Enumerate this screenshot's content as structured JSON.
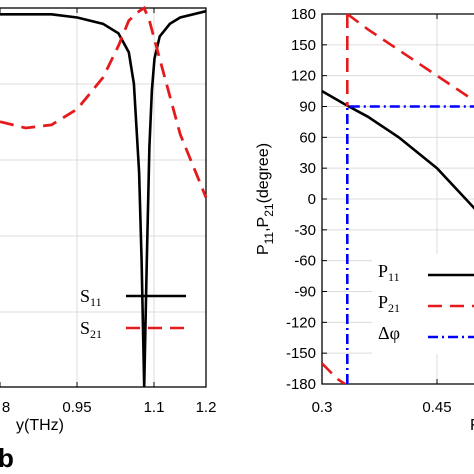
{
  "chart_data": [
    {
      "type": "line",
      "xlabel_visible": "y(THz)",
      "x_ticks": [
        "8",
        "0.95",
        "1.1",
        "1.2"
      ],
      "xlim": [
        0.8,
        1.2
      ],
      "series": [
        {
          "name": "S11",
          "color": "#000000",
          "style": "solid",
          "x": [
            0.8,
            0.85,
            0.9,
            0.95,
            1.0,
            1.03,
            1.05,
            1.06,
            1.07,
            1.075,
            1.08,
            1.085,
            1.09,
            1.095,
            1.1,
            1.11,
            1.13,
            1.15,
            1.2
          ],
          "y": [
            0.99,
            0.99,
            0.99,
            0.985,
            0.975,
            0.96,
            0.93,
            0.88,
            0.74,
            0.6,
            0.4,
            0.6,
            0.78,
            0.87,
            0.92,
            0.955,
            0.975,
            0.985,
            0.995
          ]
        },
        {
          "name": "S21",
          "color": "#e41a1c",
          "style": "dashed",
          "x": [
            0.8,
            0.85,
            0.9,
            0.95,
            1.0,
            1.03,
            1.05,
            1.07,
            1.08,
            1.09,
            1.1,
            1.13,
            1.15,
            1.18,
            1.2
          ],
          "y": [
            0.82,
            0.81,
            0.815,
            0.84,
            0.89,
            0.94,
            0.98,
            0.995,
            1.0,
            0.98,
            0.95,
            0.86,
            0.8,
            0.74,
            0.7
          ]
        }
      ],
      "legend": [
        {
          "base": "S",
          "sub": "11",
          "color": "#000000",
          "style": "solid"
        },
        {
          "base": "S",
          "sub": "21",
          "color": "#e41a1c",
          "style": "dashed"
        }
      ],
      "legend_position": "bottom-right",
      "grid": true
    },
    {
      "type": "line",
      "ylabel_parts": [
        "P",
        "11",
        ",P",
        "21",
        "(degree)"
      ],
      "y_ticks": [
        "180",
        "150",
        "120",
        "90",
        "60",
        "30",
        "0",
        "-30",
        "-60",
        "-90",
        "-120",
        "-150",
        "-180"
      ],
      "x_ticks": [
        "0.3",
        "0.45"
      ],
      "xlabel_visible": "F",
      "ylim": [
        -180,
        180
      ],
      "series": [
        {
          "name": "P11",
          "color": "#000000",
          "style": "solid",
          "x": [
            0.3,
            0.33,
            0.36,
            0.4,
            0.45,
            0.5,
            0.53,
            0.56
          ],
          "y": [
            105,
            92,
            80,
            60,
            30,
            -10,
            -40,
            -75
          ]
        },
        {
          "name": "P21",
          "color": "#e41a1c",
          "style": "dashed",
          "x": [
            0.3,
            0.32,
            0.33
          ],
          "y": [
            -160,
            -175,
            -180
          ],
          "x2": [
            0.333,
            0.36,
            0.4,
            0.45,
            0.5,
            0.53,
            0.56
          ],
          "y2": [
            180,
            165,
            145,
            120,
            95,
            80,
            65
          ]
        },
        {
          "name": "Δφ",
          "color": "#0000ff",
          "style": "dashdot",
          "x": [
            0.333,
            0.333,
            0.56
          ],
          "y": [
            -180,
            90,
            90
          ]
        }
      ],
      "vline_p21_x": 0.333,
      "legend": [
        {
          "base": "P",
          "sub": "11",
          "color": "#000000",
          "style": "solid"
        },
        {
          "base": "P",
          "sub": "21",
          "color": "#e41a1c",
          "style": "dashed"
        },
        {
          "base": "Δφ",
          "sub": "",
          "color": "#0000ff",
          "style": "dashdot"
        }
      ],
      "legend_position": "bottom-right",
      "grid": true
    }
  ],
  "panel_label": "b"
}
